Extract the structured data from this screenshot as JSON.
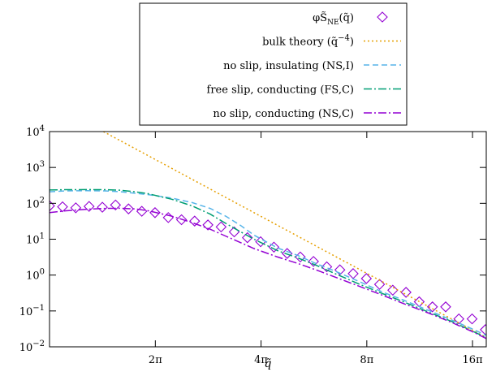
{
  "chart_data": {
    "type": "line",
    "title": "",
    "xlabel": "q̃",
    "ylabel": "",
    "x_scale": "log",
    "y_scale": "log",
    "xlim": [
      3.14,
      55.0
    ],
    "ylim": [
      0.01,
      10000
    ],
    "grid": false,
    "legend_position": "top-center",
    "x_ticks": [
      {
        "value": 6.283,
        "label": "2π"
      },
      {
        "value": 12.566,
        "label": "4π"
      },
      {
        "value": 25.133,
        "label": "8π"
      },
      {
        "value": 50.265,
        "label": "16π"
      }
    ],
    "y_ticks": [
      {
        "value": 0.01,
        "base": "10",
        "exp": "−2"
      },
      {
        "value": 0.1,
        "base": "10",
        "exp": "−1"
      },
      {
        "value": 1,
        "base": "10",
        "exp": "0"
      },
      {
        "value": 10,
        "base": "10",
        "exp": "1"
      },
      {
        "value": 100,
        "base": "10",
        "exp": "2"
      },
      {
        "value": 1000,
        "base": "10",
        "exp": "3"
      },
      {
        "value": 10000,
        "base": "10",
        "exp": "4"
      }
    ],
    "series": [
      {
        "name": "φS̃NE(q̃)",
        "legend_main": "φS̃",
        "legend_sub": "NE",
        "legend_tail": "(q̃)",
        "style": "markers",
        "marker": "diamond",
        "color": "#9400d3",
        "x": [
          3.14,
          3.42,
          3.73,
          4.07,
          4.44,
          4.84,
          5.27,
          5.75,
          6.27,
          6.84,
          7.46,
          8.13,
          8.87,
          9.67,
          10.54,
          11.49,
          12.53,
          13.67,
          14.91,
          16.25,
          17.72,
          19.33,
          21.07,
          22.98,
          25.06,
          27.33,
          29.8,
          32.5,
          35.44,
          38.65,
          42.15,
          45.96,
          50.12,
          54.66
        ],
        "y": [
          85,
          80,
          75,
          82,
          78,
          90,
          70,
          60,
          55,
          40,
          35,
          32,
          25,
          22,
          16,
          11,
          8.5,
          6,
          4,
          3.2,
          2.4,
          1.7,
          1.4,
          1.1,
          0.8,
          0.55,
          0.38,
          0.33,
          0.18,
          0.13,
          0.13,
          0.06,
          0.06,
          0.03
        ]
      },
      {
        "name": "bulk theory (q̃−4)",
        "legend_main": "bulk theory (q̃",
        "legend_sup": "−4",
        "legend_tail": ")",
        "style": "dotted",
        "color": "#e69f00",
        "x": [
          4.47,
          55.0
        ],
        "y": [
          10000,
          0.018
        ]
      },
      {
        "name": "no slip, insulating (NS,I)",
        "style": "dashed",
        "color": "#56b4e9",
        "x": [
          3.14,
          3.5,
          4.0,
          4.5,
          5.0,
          6.0,
          7.0,
          8.0,
          9.0,
          10.0,
          11.0,
          12.0,
          14.0,
          16.0,
          18.0,
          20.0,
          24.0,
          28.0,
          32.0,
          38.0,
          44.0,
          50.0,
          55.0
        ],
        "y": [
          210,
          222,
          225,
          222,
          210,
          175,
          140,
          105,
          72,
          43,
          24,
          13,
          5.7,
          3.5,
          2.1,
          1.4,
          0.65,
          0.33,
          0.2,
          0.1,
          0.055,
          0.032,
          0.021
        ]
      },
      {
        "name": "free slip, conducting (FS,C)",
        "style": "dash-dot",
        "color": "#009e73",
        "x": [
          3.14,
          3.5,
          4.0,
          4.5,
          5.0,
          5.5,
          6.0,
          7.0,
          8.0,
          9.0,
          10.0,
          11.0,
          12.0,
          14.0,
          16.0,
          18.0,
          20.0,
          24.0,
          28.0,
          32.0,
          38.0,
          44.0,
          50.0,
          55.0
        ],
        "y": [
          235,
          240,
          242,
          240,
          232,
          210,
          185,
          130,
          85,
          50,
          27,
          16,
          10,
          4.8,
          3.0,
          1.9,
          1.2,
          0.55,
          0.3,
          0.18,
          0.09,
          0.05,
          0.028,
          0.018
        ]
      },
      {
        "name": "no slip, conducting (NS,C)",
        "style": "dash-dot",
        "color": "#9400d3",
        "x": [
          3.14,
          3.5,
          4.0,
          4.5,
          5.0,
          5.5,
          6.0,
          7.0,
          8.0,
          9.0,
          10.0,
          11.0,
          12.0,
          14.0,
          16.0,
          18.0,
          20.0,
          24.0,
          28.0,
          32.0,
          38.0,
          44.0,
          50.0,
          55.0
        ],
        "y": [
          55,
          62,
          68,
          72,
          73,
          70,
          62,
          44,
          29,
          19,
          12,
          8,
          5.5,
          3.2,
          2.1,
          1.4,
          0.95,
          0.48,
          0.27,
          0.16,
          0.085,
          0.047,
          0.027,
          0.017
        ]
      }
    ]
  }
}
